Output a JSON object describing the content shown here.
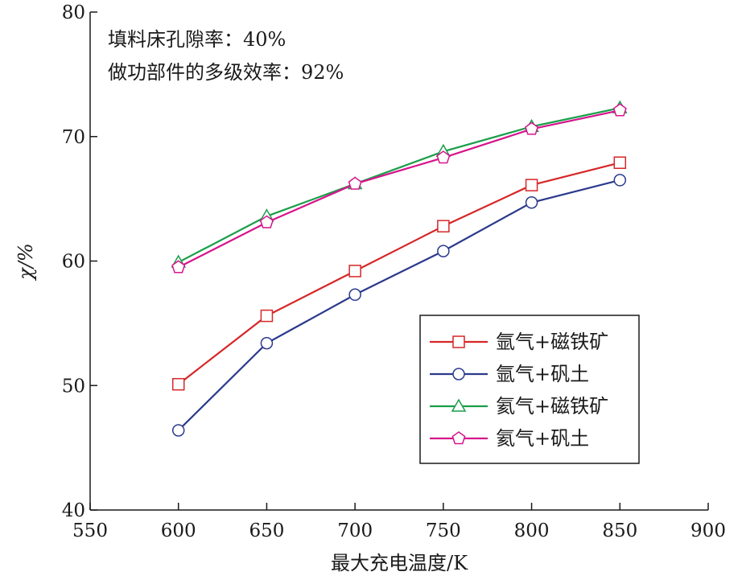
{
  "chart_data": {
    "type": "line",
    "xlabel": "最大充电温度/K",
    "ylabel": "χ/%",
    "xlim": [
      550,
      900
    ],
    "ylim": [
      40,
      80
    ],
    "x_ticks": [
      550,
      600,
      650,
      700,
      750,
      800,
      850,
      900
    ],
    "y_ticks": [
      40,
      50,
      60,
      70,
      80
    ],
    "grid": false,
    "legend_position": "lower-right",
    "annotations": [
      "填料床孔隙率：40%",
      "做功部件的多级效率：92%"
    ],
    "x": [
      600,
      650,
      700,
      750,
      800,
      850
    ],
    "series": [
      {
        "name": "氩气+磁铁矿",
        "color": "#d62728",
        "marker": "square",
        "values": [
          50.1,
          55.6,
          59.2,
          62.8,
          66.1,
          67.9
        ]
      },
      {
        "name": "氩气+矾土",
        "color": "#2b3a8c",
        "marker": "circle",
        "values": [
          46.4,
          53.4,
          57.3,
          60.8,
          64.7,
          66.5
        ]
      },
      {
        "name": "氦气+磁铁矿",
        "color": "#1a9e4a",
        "marker": "triangle",
        "values": [
          59.9,
          63.6,
          66.2,
          68.8,
          70.8,
          72.3
        ]
      },
      {
        "name": "氦气+矾土",
        "color": "#d6148c",
        "marker": "pentagon",
        "values": [
          59.5,
          63.1,
          66.2,
          68.3,
          70.6,
          72.1
        ]
      }
    ]
  }
}
